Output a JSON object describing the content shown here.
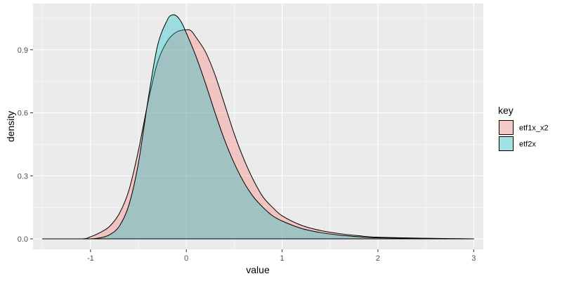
{
  "chart_data": {
    "type": "area",
    "xlabel": "value",
    "ylabel": "density",
    "xlim": [
      -1.6,
      3.1
    ],
    "ylim": [
      -0.05,
      1.12
    ],
    "x_ticks": [
      -1,
      0,
      1,
      2,
      3
    ],
    "x_tick_labels": [
      "-1",
      "0",
      "1",
      "2",
      "3"
    ],
    "y_ticks": [
      0.0,
      0.3,
      0.6,
      0.9
    ],
    "y_tick_labels": [
      "0.0",
      "0.3",
      "0.6",
      "0.9"
    ],
    "grid": true,
    "legend": {
      "title": "key",
      "placement": "right"
    },
    "series": [
      {
        "name": "etf1x_x2",
        "fill": "#F8766D",
        "x": [
          -1.5,
          -1.1,
          -1.0,
          -0.9,
          -0.8,
          -0.7,
          -0.6,
          -0.5,
          -0.4,
          -0.3,
          -0.2,
          -0.1,
          0.0,
          0.05,
          0.1,
          0.2,
          0.3,
          0.4,
          0.5,
          0.6,
          0.7,
          0.8,
          0.9,
          1.0,
          1.2,
          1.4,
          1.6,
          1.8,
          2.0,
          2.5,
          3.0
        ],
        "values": [
          0.0,
          0.0,
          0.01,
          0.03,
          0.06,
          0.12,
          0.23,
          0.42,
          0.65,
          0.84,
          0.94,
          0.985,
          0.995,
          0.99,
          0.96,
          0.89,
          0.78,
          0.64,
          0.5,
          0.38,
          0.28,
          0.2,
          0.15,
          0.11,
          0.065,
          0.04,
          0.025,
          0.015,
          0.008,
          0.003,
          0.0
        ]
      },
      {
        "name": "etf2x",
        "fill": "#00BFC4",
        "x": [
          -1.5,
          -1.1,
          -1.0,
          -0.9,
          -0.8,
          -0.7,
          -0.6,
          -0.5,
          -0.4,
          -0.3,
          -0.2,
          -0.15,
          -0.1,
          -0.05,
          0.0,
          0.1,
          0.2,
          0.3,
          0.4,
          0.5,
          0.6,
          0.7,
          0.8,
          0.9,
          1.0,
          1.2,
          1.4,
          1.6,
          1.8,
          2.0,
          2.5,
          3.0
        ],
        "values": [
          0.0,
          0.0,
          0.0,
          0.005,
          0.02,
          0.06,
          0.16,
          0.36,
          0.66,
          0.92,
          1.04,
          1.065,
          1.06,
          1.03,
          0.98,
          0.87,
          0.74,
          0.6,
          0.47,
          0.36,
          0.27,
          0.2,
          0.15,
          0.11,
          0.085,
          0.05,
          0.03,
          0.018,
          0.01,
          0.005,
          0.002,
          0.0
        ]
      }
    ]
  },
  "colors": {
    "panel_background": "#EBEBEB",
    "grid_major": "#FFFFFF",
    "outline": "#000000"
  }
}
